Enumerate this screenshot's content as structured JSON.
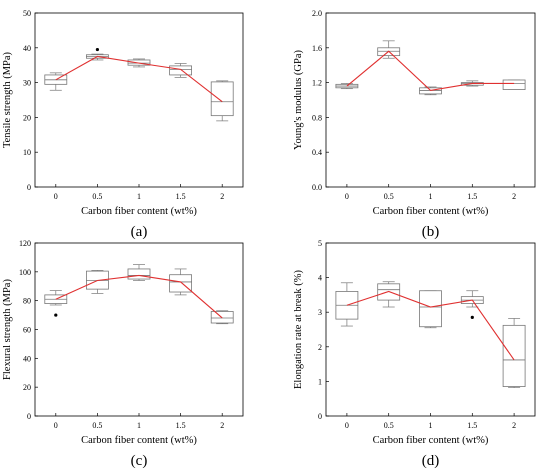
{
  "chart_data": [
    {
      "type": "box",
      "panel_label": "(a)",
      "xlabel": "Carbon fiber content (wt%)",
      "ylabel": "Tensile strength (MPa)",
      "categories": [
        "0",
        "0.5",
        "1",
        "1.5",
        "2"
      ],
      "ylim": [
        0,
        50
      ],
      "yticks": [
        "0",
        "10",
        "20",
        "30",
        "40",
        "50"
      ],
      "boxes": [
        {
          "min": 27.8,
          "q1": 29.5,
          "median": 30.8,
          "q3": 32.2,
          "max": 32.8
        },
        {
          "min": 36.5,
          "q1": 37.0,
          "median": 37.5,
          "q3": 38.0,
          "max": 38.2
        },
        {
          "min": 34.5,
          "q1": 35.0,
          "median": 35.6,
          "q3": 36.5,
          "max": 36.8
        },
        {
          "min": 31.5,
          "q1": 32.2,
          "median": 33.8,
          "q3": 34.8,
          "max": 35.5
        },
        {
          "min": 19.0,
          "q1": 20.5,
          "median": 24.5,
          "q3": 30.2,
          "max": 30.5
        }
      ],
      "outliers": [
        {
          "x": "0.5",
          "y": 39.5
        }
      ],
      "mean_line": [
        30.8,
        37.5,
        35.6,
        33.8,
        24.5
      ],
      "line_color": "#e03030"
    },
    {
      "type": "box",
      "panel_label": "(b)",
      "xlabel": "Carbon fiber content (wt%)",
      "ylabel": "Young's modulus (GPa)",
      "categories": [
        "0",
        "0.5",
        "1",
        "1.5",
        "2"
      ],
      "ylim": [
        0.0,
        2.0
      ],
      "yticks": [
        "0.0",
        "0.4",
        "0.8",
        "1.2",
        "1.6",
        "2.0"
      ],
      "boxes": [
        {
          "min": 1.13,
          "q1": 1.14,
          "median": 1.16,
          "q3": 1.18,
          "max": 1.19
        },
        {
          "min": 1.48,
          "q1": 1.51,
          "median": 1.56,
          "q3": 1.6,
          "max": 1.68
        },
        {
          "min": 1.06,
          "q1": 1.07,
          "median": 1.11,
          "q3": 1.14,
          "max": 1.15
        },
        {
          "min": 1.16,
          "q1": 1.17,
          "median": 1.19,
          "q3": 1.2,
          "max": 1.22
        },
        {
          "min": 1.12,
          "q1": 1.12,
          "median": 1.19,
          "q3": 1.23,
          "max": 1.23
        }
      ],
      "outliers": [],
      "mean_line": [
        1.16,
        1.56,
        1.11,
        1.19,
        1.19
      ],
      "line_color": "#e03030"
    },
    {
      "type": "box",
      "panel_label": "(c)",
      "xlabel": "Carbon fiber content (wt%)",
      "ylabel": "Flexural strength (MPa)",
      "categories": [
        "0",
        "0.5",
        "1",
        "1.5",
        "2"
      ],
      "ylim": [
        0,
        120
      ],
      "yticks": [
        "0",
        "20",
        "40",
        "60",
        "80",
        "100",
        "120"
      ],
      "boxes": [
        {
          "min": 77,
          "q1": 78,
          "median": 81,
          "q3": 84,
          "max": 87
        },
        {
          "min": 85,
          "q1": 88,
          "median": 94,
          "q3": 100.5,
          "max": 101
        },
        {
          "min": 94,
          "q1": 95,
          "median": 97.5,
          "q3": 102,
          "max": 105
        },
        {
          "min": 84,
          "q1": 86,
          "median": 93,
          "q3": 98,
          "max": 102
        },
        {
          "min": 64,
          "q1": 64.5,
          "median": 68,
          "q3": 72.5,
          "max": 73
        }
      ],
      "outliers": [
        {
          "x": "0",
          "y": 70
        }
      ],
      "mean_line": [
        81,
        94,
        97.5,
        93,
        68
      ],
      "line_color": "#e03030"
    },
    {
      "type": "box",
      "panel_label": "(d)",
      "xlabel": "Carbon fiber content (wt%)",
      "ylabel": "Elongation rate at break (%)",
      "categories": [
        "0",
        "0.5",
        "1",
        "1.5",
        "2"
      ],
      "ylim": [
        0,
        5
      ],
      "yticks": [
        "0",
        "1",
        "2",
        "3",
        "4",
        "5"
      ],
      "boxes": [
        {
          "min": 2.6,
          "q1": 2.8,
          "median": 3.2,
          "q3": 3.6,
          "max": 3.85
        },
        {
          "min": 3.15,
          "q1": 3.35,
          "median": 3.65,
          "q3": 3.82,
          "max": 3.88
        },
        {
          "min": 2.55,
          "q1": 2.58,
          "median": 3.15,
          "q3": 3.62,
          "max": 3.62
        },
        {
          "min": 3.15,
          "q1": 3.25,
          "median": 3.35,
          "q3": 3.45,
          "max": 3.62
        },
        {
          "min": 0.82,
          "q1": 0.85,
          "median": 1.62,
          "q3": 2.62,
          "max": 2.82
        }
      ],
      "outliers": [
        {
          "x": "1.5",
          "y": 2.85
        }
      ],
      "mean_line": [
        3.2,
        3.6,
        3.15,
        3.35,
        1.62
      ],
      "line_color": "#e03030"
    }
  ]
}
